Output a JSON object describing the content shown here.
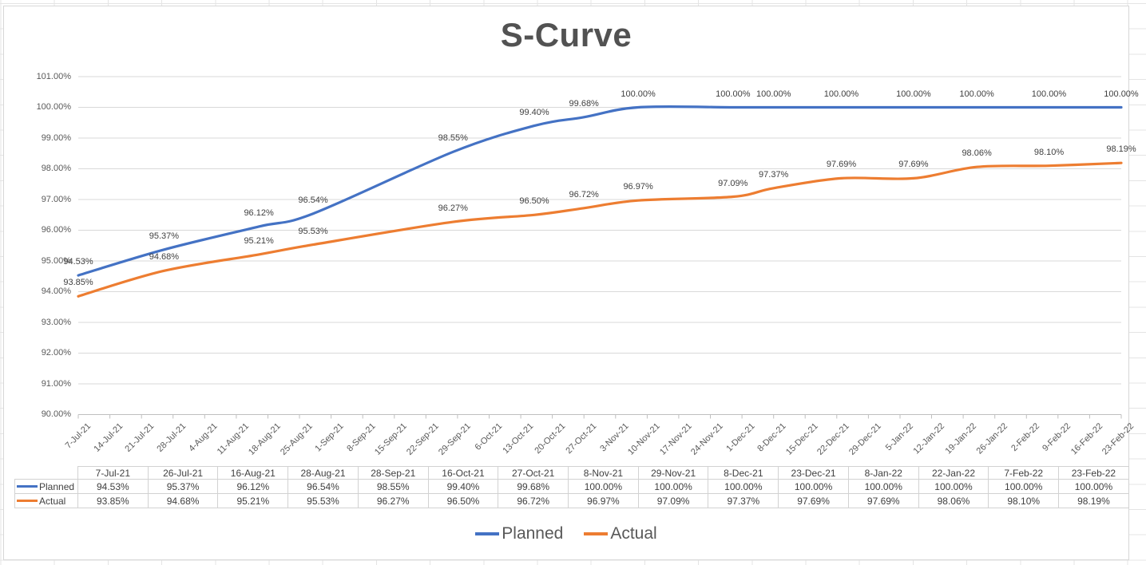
{
  "chart_data": {
    "type": "line",
    "title": "S-Curve",
    "x_tick_labels": [
      "7-Jul-21",
      "14-Jul-21",
      "21-Jul-21",
      "28-Jul-21",
      "4-Aug-21",
      "11-Aug-21",
      "18-Aug-21",
      "25-Aug-21",
      "1-Sep-21",
      "8-Sep-21",
      "15-Sep-21",
      "22-Sep-21",
      "29-Sep-21",
      "6-Oct-21",
      "13-Oct-21",
      "20-Oct-21",
      "27-Oct-21",
      "3-Nov-21",
      "10-Nov-21",
      "17-Nov-21",
      "24-Nov-21",
      "1-Dec-21",
      "8-Dec-21",
      "15-Dec-21",
      "22-Dec-21",
      "29-Dec-21",
      "5-Jan-22",
      "12-Jan-22",
      "19-Jan-22",
      "26-Jan-22",
      "2-Feb-22",
      "9-Feb-22",
      "16-Feb-22",
      "23-Feb-22"
    ],
    "y_tick_labels": [
      "90.00%",
      "91.00%",
      "92.00%",
      "93.00%",
      "94.00%",
      "95.00%",
      "96.00%",
      "97.00%",
      "98.00%",
      "99.00%",
      "100.00%",
      "101.00%"
    ],
    "ylim": [
      90,
      101
    ],
    "grid": true,
    "legend_position": "bottom",
    "x_days": [
      0,
      19,
      40,
      52,
      83,
      101,
      112,
      124,
      145,
      154,
      169,
      185,
      199,
      215,
      231
    ],
    "x_total_days": 231,
    "series": [
      {
        "name": "Planned",
        "color": "#4472C4",
        "values": [
          94.53,
          95.37,
          96.12,
          96.54,
          98.55,
          99.4,
          99.68,
          100,
          100,
          100,
          100,
          100,
          100,
          100,
          100
        ],
        "labels": [
          "94.53%",
          "95.37%",
          "96.12%",
          "96.54%",
          "98.55%",
          "99.40%",
          "99.68%",
          "100.00%",
          "100.00%",
          "100.00%",
          "100.00%",
          "100.00%",
          "100.00%",
          "100.00%",
          "100.00%"
        ]
      },
      {
        "name": "Actual",
        "color": "#ED7D31",
        "values": [
          93.85,
          94.68,
          95.21,
          95.53,
          96.27,
          96.5,
          96.72,
          96.97,
          97.09,
          97.37,
          97.69,
          97.69,
          98.06,
          98.1,
          98.19
        ],
        "labels": [
          "93.85%",
          "94.68%",
          "95.21%",
          "95.53%",
          "96.27%",
          "96.50%",
          "96.72%",
          "96.97%",
          "97.09%",
          "97.37%",
          "97.69%",
          "97.69%",
          "98.06%",
          "98.10%",
          "98.19%"
        ]
      }
    ],
    "colors": {
      "gridline": "#d9d9d9",
      "axis_line": "#bfbfbf",
      "axis_text": "#595959",
      "data_label_text": "#404040",
      "title_text": "#525252"
    }
  },
  "legend": {
    "items": [
      {
        "label": "Planned",
        "color": "#4472C4"
      },
      {
        "label": "Actual",
        "color": "#ED7D31"
      }
    ]
  },
  "table": {
    "columns": [
      "7-Jul-21",
      "26-Jul-21",
      "16-Aug-21",
      "28-Aug-21",
      "28-Sep-21",
      "16-Oct-21",
      "27-Oct-21",
      "8-Nov-21",
      "29-Nov-21",
      "8-Dec-21",
      "23-Dec-21",
      "8-Jan-22",
      "22-Jan-22",
      "7-Feb-22",
      "23-Feb-22"
    ],
    "rows": [
      {
        "name": "Planned",
        "color": "#4472C4",
        "values": [
          "94.53%",
          "95.37%",
          "96.12%",
          "96.54%",
          "98.55%",
          "99.40%",
          "99.68%",
          "100.00%",
          "100.00%",
          "100.00%",
          "100.00%",
          "100.00%",
          "100.00%",
          "100.00%",
          "100.00%"
        ]
      },
      {
        "name": "Actual",
        "color": "#ED7D31",
        "values": [
          "93.85%",
          "94.68%",
          "95.21%",
          "95.53%",
          "96.27%",
          "96.50%",
          "96.72%",
          "96.97%",
          "97.09%",
          "97.37%",
          "97.69%",
          "97.69%",
          "98.06%",
          "98.10%",
          "98.19%"
        ]
      }
    ]
  }
}
